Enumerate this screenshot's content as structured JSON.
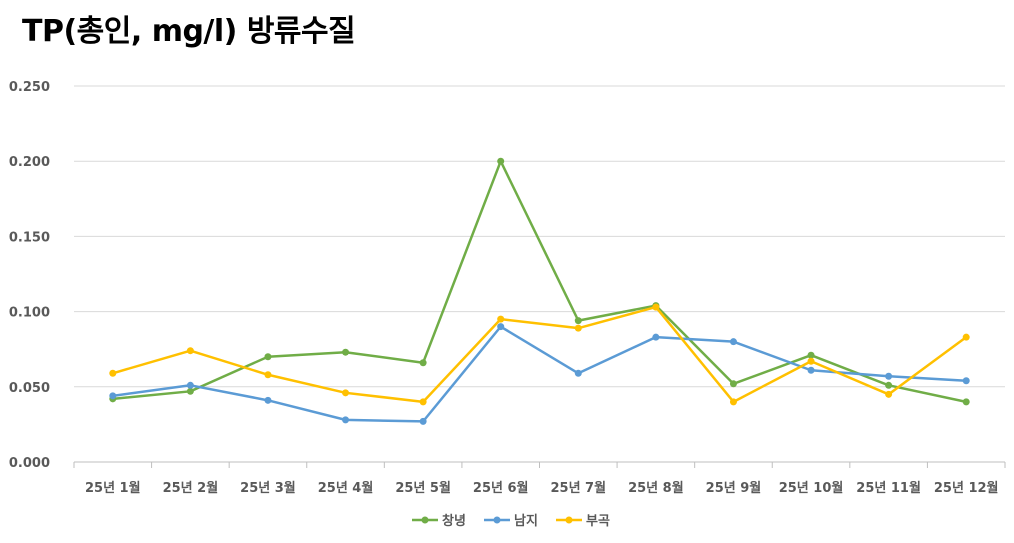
{
  "chart_data": {
    "type": "line",
    "title": "TP(총인, mg/l) 방류수질",
    "xlabel": "",
    "ylabel": "",
    "ylim": [
      0,
      0.25
    ],
    "yticks": [
      "0.000",
      "0.050",
      "0.100",
      "0.150",
      "0.200",
      "0.250"
    ],
    "ytick_values": [
      0,
      0.05,
      0.1,
      0.15,
      0.2,
      0.25
    ],
    "grid": true,
    "legend_position": "bottom",
    "categories": [
      "25년 1월",
      "25년 2월",
      "25년 3월",
      "25년 4월",
      "25년 5월",
      "25년 6월",
      "25년 7월",
      "25년 8월",
      "25년 9월",
      "25년 10월",
      "25년 11월",
      "25년 12월"
    ],
    "series": [
      {
        "name": "창녕",
        "color": "#70AD47",
        "values": [
          0.042,
          0.047,
          0.07,
          0.073,
          0.066,
          0.2,
          0.094,
          0.104,
          0.052,
          0.071,
          0.051,
          0.04
        ]
      },
      {
        "name": "남지",
        "color": "#5B9BD5",
        "values": [
          0.044,
          0.051,
          0.041,
          0.028,
          0.027,
          0.09,
          0.059,
          0.083,
          0.08,
          0.061,
          0.057,
          0.054
        ]
      },
      {
        "name": "부곡",
        "color": "#FFC000",
        "values": [
          0.059,
          0.074,
          0.058,
          0.046,
          0.04,
          0.095,
          0.089,
          0.103,
          0.04,
          0.067,
          0.045,
          0.083
        ]
      }
    ]
  }
}
